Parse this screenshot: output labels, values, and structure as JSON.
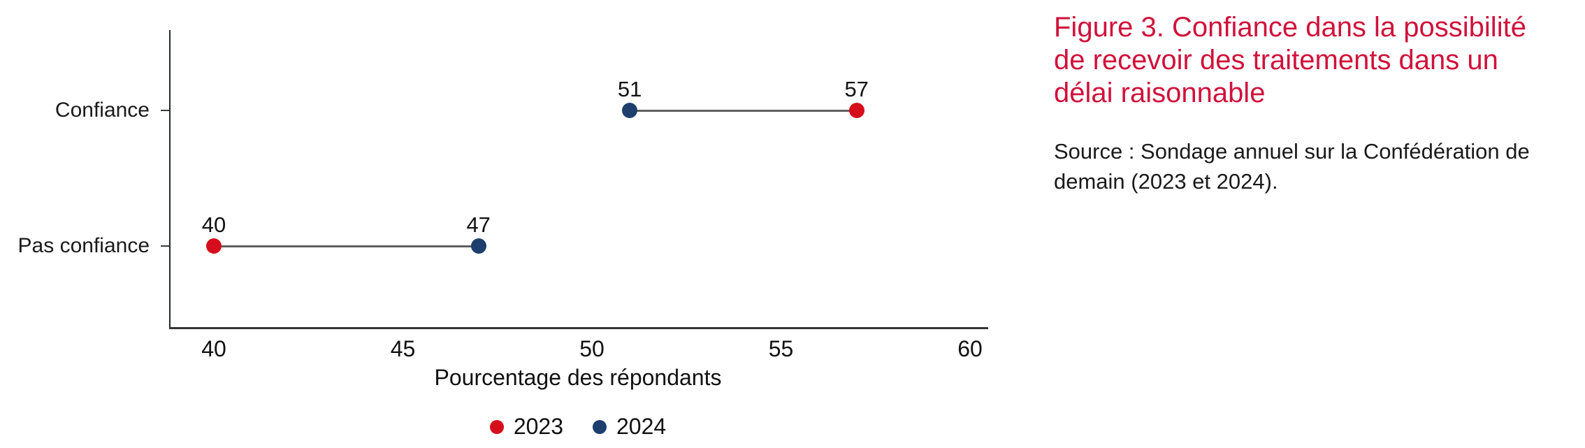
{
  "figure": {
    "title": "Figure 3. Confiance dans la possibilité de recevoir des traitements dans un délai raisonnable",
    "title_color": "#d0113b",
    "source": "Source : Sondage annuel sur la Confédération de demain (2023 et 2024)."
  },
  "chart_data": {
    "type": "dumbbell",
    "categories": [
      "Confiance",
      "Pas confiance"
    ],
    "series": [
      {
        "name": "2023",
        "color": "#d60d1c",
        "values": [
          57,
          40
        ]
      },
      {
        "name": "2024",
        "color": "#1c3f6e",
        "values": [
          51,
          47
        ]
      }
    ],
    "xlabel": "Pourcentage des répondants",
    "x_ticks": [
      40,
      45,
      50,
      55,
      60
    ],
    "xlim": [
      40,
      60
    ],
    "value_labels": true,
    "grid": false,
    "legend_position": "bottom"
  }
}
